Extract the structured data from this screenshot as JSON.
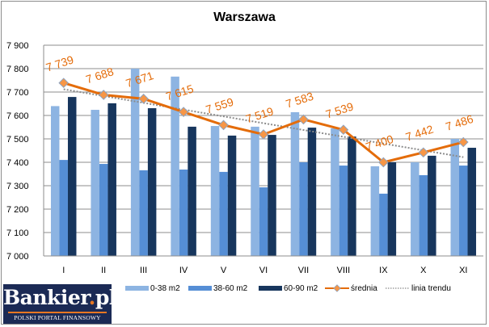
{
  "chart_data": {
    "type": "bar",
    "title": "Warszawa",
    "xlabel": "",
    "ylabel": "",
    "ylim": [
      7000,
      7900
    ],
    "yticks": [
      "7 000",
      "7 100",
      "7 200",
      "7 300",
      "7 400",
      "7 500",
      "7 600",
      "7 700",
      "7 800",
      "7 900"
    ],
    "categories": [
      "I",
      "II",
      "III",
      "IV",
      "V",
      "VI",
      "VII",
      "VIII",
      "IX",
      "X",
      "XI"
    ],
    "grid": true,
    "legend_position": "bottom",
    "series": [
      {
        "name": "0-38 m2",
        "type": "bar",
        "color": "#8DB4E2",
        "values": [
          7640,
          7624,
          7800,
          7766,
          7555,
          7552,
          7614,
          7545,
          7383,
          7400,
          7500
        ]
      },
      {
        "name": "38-60 m2",
        "type": "bar",
        "color": "#558ED5",
        "values": [
          7410,
          7393,
          7366,
          7369,
          7359,
          7293,
          7400,
          7386,
          7266,
          7345,
          7386
        ]
      },
      {
        "name": "60-90 m2",
        "type": "bar",
        "color": "#17365D",
        "values": [
          7679,
          7652,
          7631,
          7552,
          7514,
          7517,
          7548,
          7510,
          7400,
          7428,
          7462
        ]
      },
      {
        "name": "średnia",
        "type": "line",
        "color": "#E46C0A",
        "marker_color": "#F79646",
        "values": [
          7739,
          7688,
          7671,
          7615,
          7559,
          7519,
          7583,
          7539,
          7400,
          7442,
          7486
        ],
        "labels": [
          "7 739",
          "7 688",
          "7 671",
          "7 615",
          "7 559",
          "7 519",
          "7 583",
          "7 539",
          "7 400",
          "7 442",
          "7 486"
        ]
      },
      {
        "name": "linia trendu",
        "type": "line",
        "style": "dotted",
        "color": "#8c8c8c",
        "values": [
          7712,
          7683,
          7654,
          7625,
          7596,
          7567,
          7538,
          7509,
          7480,
          7451,
          7422
        ]
      }
    ]
  },
  "legend": {
    "items": [
      {
        "label": "0-38 m2"
      },
      {
        "label": "38-60 m2"
      },
      {
        "label": "60-90 m2"
      },
      {
        "label": "średnia"
      },
      {
        "label": "linia trendu"
      }
    ]
  },
  "logo": {
    "brand_main": "Bankier",
    "brand_dot": ".",
    "brand_tld": "pl",
    "tagline": "POLSKI PORTAL FINANSOWY"
  }
}
